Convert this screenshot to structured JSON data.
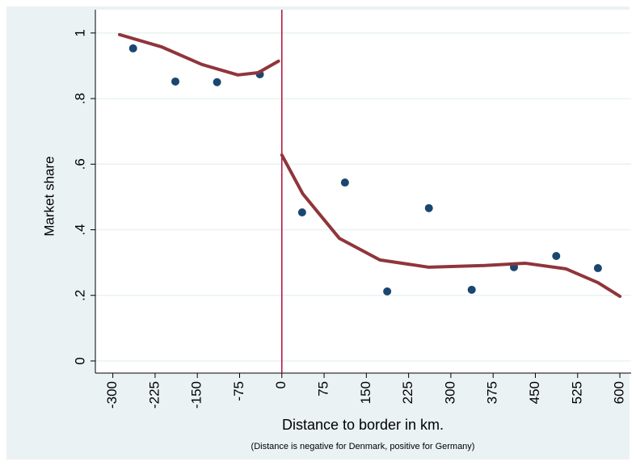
{
  "chart_data": {
    "type": "scatter",
    "x_label": "Distance to border in km.",
    "note": "(Distance is negative for Denmark, positive for Germany)",
    "y_label": "Market share",
    "xlim": [
      -331,
      620
    ],
    "ylim": [
      -0.037,
      1.071
    ],
    "xticks": [
      -300,
      -225,
      -150,
      -75,
      0,
      75,
      150,
      225,
      300,
      375,
      450,
      525,
      600
    ],
    "yticks": [
      0,
      {
        "value": 0.2,
        "label": ".2"
      },
      {
        "value": 0.4,
        "label": ".4"
      },
      {
        "value": 0.6,
        "label": ".6"
      },
      {
        "value": 0.8,
        "label": ".8"
      },
      1
    ],
    "grid": true,
    "xline": 0,
    "xline_color": "#b0103a",
    "series": [
      {
        "mode": "markers",
        "color": "#1a476f",
        "x": [
          -264,
          -189,
          -115,
          -39,
          36,
          112,
          187,
          261,
          337,
          412,
          487,
          561
        ],
        "values": [
          0.953,
          0.852,
          0.85,
          0.874,
          0.453,
          0.544,
          0.212,
          0.466,
          0.217,
          0.286,
          0.32,
          0.283
        ]
      },
      {
        "mode": "line",
        "color": "#90353b",
        "x": [
          -288,
          -214,
          -142,
          -78,
          -42,
          -6
        ],
        "values": [
          0.995,
          0.958,
          0.904,
          0.872,
          0.879,
          0.914
        ]
      },
      {
        "mode": "line",
        "color": "#90353b",
        "x": [
          0,
          37,
          102,
          174,
          260,
          360,
          432,
          504,
          561,
          600
        ],
        "values": [
          0.628,
          0.51,
          0.374,
          0.308,
          0.286,
          0.291,
          0.298,
          0.281,
          0.239,
          0.197
        ]
      }
    ]
  }
}
